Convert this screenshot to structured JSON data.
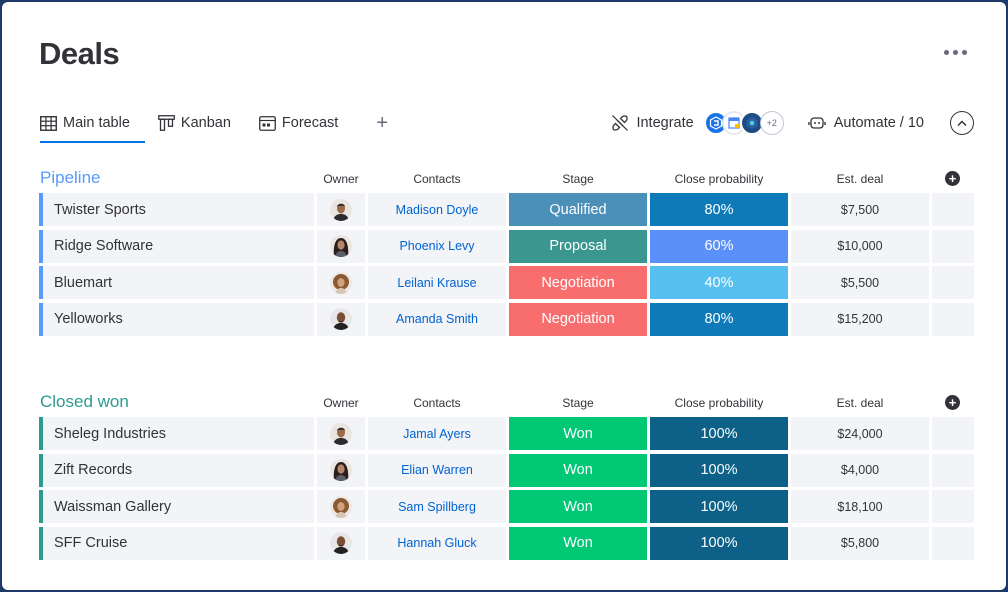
{
  "page": {
    "title": "Deals"
  },
  "tabs": [
    {
      "label": "Main table",
      "icon": "table-icon"
    },
    {
      "label": "Kanban",
      "icon": "kanban-icon"
    },
    {
      "label": "Forecast",
      "icon": "forecast-icon"
    }
  ],
  "tools": {
    "integrate_label": "Integrate",
    "integrations_more": "+2",
    "automate_label": "Automate / 10"
  },
  "columns": {
    "owner": "Owner",
    "contacts": "Contacts",
    "stage": "Stage",
    "probability": "Close probability",
    "deal": "Est. deal"
  },
  "groups": [
    {
      "title": "Pipeline",
      "color": "#579bfc",
      "rows": [
        {
          "name": "Twister Sports",
          "contact": "Madison Doyle",
          "stage": "Qualified",
          "stage_color": "#4a90b8",
          "probability": "80%",
          "prob_color": "#0f7ab8",
          "deal": "$7,500",
          "avatar": "man-dark-shirt"
        },
        {
          "name": "Ridge Software",
          "contact": "Phoenix Levy",
          "stage": "Proposal",
          "stage_color": "#3a9790",
          "probability": "60%",
          "prob_color": "#5b8ff9",
          "deal": "$10,000",
          "avatar": "woman-dark-hair"
        },
        {
          "name": "Bluemart",
          "contact": "Leilani Krause",
          "stage": "Negotiation",
          "stage_color": "#f86e6e",
          "probability": "40%",
          "prob_color": "#57c0f0",
          "deal": "$5,500",
          "avatar": "woman-curly-hair"
        },
        {
          "name": "Yelloworks",
          "contact": "Amanda Smith",
          "stage": "Negotiation",
          "stage_color": "#f86e6e",
          "probability": "80%",
          "prob_color": "#0f7ab8",
          "deal": "$15,200",
          "avatar": "man-bald"
        }
      ]
    },
    {
      "title": "Closed won",
      "color": "#2d9a8e",
      "rows": [
        {
          "name": "Sheleg Industries",
          "contact": "Jamal Ayers",
          "stage": "Won",
          "stage_color": "#00c875",
          "probability": "100%",
          "prob_color": "#0d6189",
          "deal": "$24,000",
          "avatar": "man-dark-shirt"
        },
        {
          "name": "Zift Records",
          "contact": "Elian Warren",
          "stage": "Won",
          "stage_color": "#00c875",
          "probability": "100%",
          "prob_color": "#0d6189",
          "deal": "$4,000",
          "avatar": "woman-dark-hair"
        },
        {
          "name": "Waissman Gallery",
          "contact": "Sam Spillberg",
          "stage": "Won",
          "stage_color": "#00c875",
          "probability": "100%",
          "prob_color": "#0d6189",
          "deal": "$18,100",
          "avatar": "woman-curly-hair"
        },
        {
          "name": "SFF Cruise",
          "contact": "Hannah Gluck",
          "stage": "Won",
          "stage_color": "#00c875",
          "probability": "100%",
          "prob_color": "#0d6189",
          "deal": "$5,800",
          "avatar": "man-bald"
        }
      ]
    }
  ]
}
